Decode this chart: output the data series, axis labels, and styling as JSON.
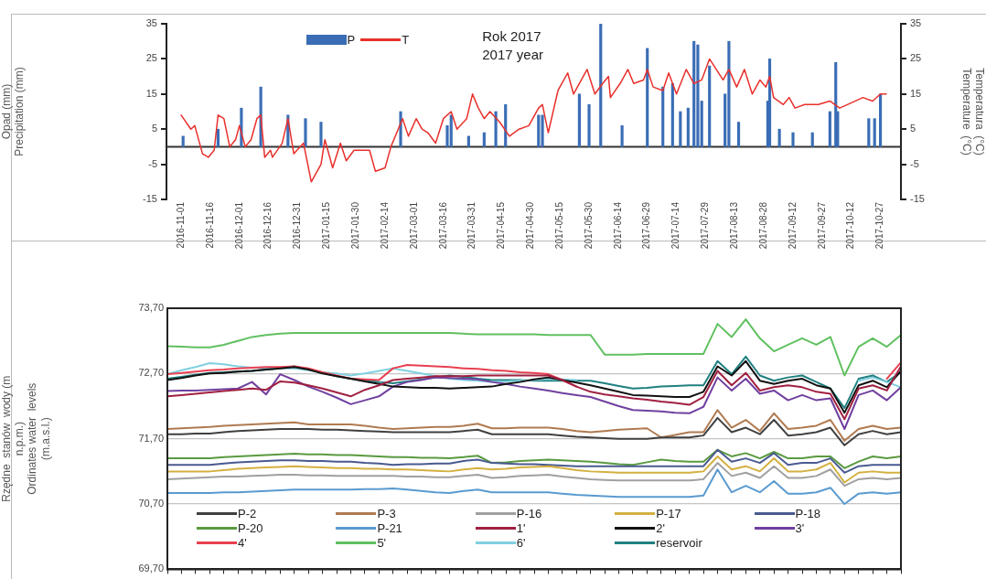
{
  "chart_data": [
    {
      "type": "bar",
      "ylabel": "Opad (mm)\nPrecipitation (mm)",
      "y2label": "Temperatura  (°C)\nTemperature  (°C)",
      "annotations": [
        "Rok 2017",
        "2017 year"
      ],
      "xlim": [
        "2016-11-01",
        "2017-10-30"
      ],
      "xticks": [
        "2016-11-01",
        "2016-11-16",
        "2016-12-01",
        "2016-12-16",
        "2016-12-31",
        "2017-01-15",
        "2017-01-30",
        "2017-02-14",
        "2017-03-01",
        "2017-03-16",
        "2017-03-31",
        "2017-04-15",
        "2017-04-30",
        "2017-05-15",
        "2017-05-30",
        "2017-06-14",
        "2017-06-29",
        "2017-07-14",
        "2017-07-29",
        "2017-08-13",
        "2017-08-28",
        "2017-09-12",
        "2017-09-27",
        "2017-10-12",
        "2017-10-27"
      ],
      "ylim": [
        -15,
        35
      ],
      "yticks": [
        -15,
        -5,
        5,
        15,
        25,
        35
      ],
      "y2lim": [
        -15,
        35
      ],
      "y2ticks": [
        -15,
        -5,
        5,
        15,
        25,
        35
      ],
      "legend": "top",
      "ref_lines": [
        {
          "axis": "y",
          "value": 0,
          "color": "#333333"
        }
      ],
      "series": [
        {
          "name": "P",
          "type": "bar",
          "color": "#3a6db5",
          "x": [
            "2016-11-02",
            "2016-11-20",
            "2016-12-02",
            "2016-12-12",
            "2016-12-26",
            "2017-01-04",
            "2017-01-12",
            "2017-02-22",
            "2017-03-18",
            "2017-03-20",
            "2017-03-29",
            "2017-04-06",
            "2017-04-12",
            "2017-04-17",
            "2017-05-04",
            "2017-05-06",
            "2017-05-25",
            "2017-05-30",
            "2017-06-05",
            "2017-06-16",
            "2017-06-29",
            "2017-07-07",
            "2017-07-12",
            "2017-07-16",
            "2017-07-20",
            "2017-07-23",
            "2017-07-25",
            "2017-07-27",
            "2017-07-31",
            "2017-08-08",
            "2017-08-10",
            "2017-08-15",
            "2017-08-30",
            "2017-08-31",
            "2017-09-05",
            "2017-09-12",
            "2017-09-22",
            "2017-10-01",
            "2017-10-04",
            "2017-10-05",
            "2017-10-21",
            "2017-10-24",
            "2017-10-27"
          ],
          "values": [
            3,
            5,
            11,
            17,
            9,
            8,
            7,
            10,
            6,
            9,
            3,
            4,
            10,
            12,
            9,
            9,
            15,
            12,
            35,
            6,
            28,
            17,
            18,
            10,
            11,
            30,
            29,
            13,
            23,
            15,
            30,
            7,
            13,
            25,
            5,
            4,
            4,
            10,
            24,
            10,
            8,
            8,
            15
          ]
        },
        {
          "name": "T",
          "type": "line",
          "axis": "y2",
          "color": "#e8302c",
          "x": [
            "2016-11-01",
            "2016-11-06",
            "2016-11-08",
            "2016-11-12",
            "2016-11-15",
            "2016-11-18",
            "2016-11-20",
            "2016-11-23",
            "2016-11-26",
            "2016-11-29",
            "2016-12-01",
            "2016-12-04",
            "2016-12-07",
            "2016-12-10",
            "2016-12-12",
            "2016-12-14",
            "2016-12-17",
            "2016-12-18",
            "2016-12-23",
            "2016-12-26",
            "2016-12-29",
            "2017-01-03",
            "2017-01-07",
            "2017-01-12",
            "2017-01-14",
            "2017-01-18",
            "2017-01-22",
            "2017-01-25",
            "2017-01-29",
            "2017-02-01",
            "2017-02-06",
            "2017-02-09",
            "2017-02-14",
            "2017-02-17",
            "2017-02-20",
            "2017-02-23",
            "2017-02-26",
            "2017-03-02",
            "2017-03-05",
            "2017-03-08",
            "2017-03-12",
            "2017-03-16",
            "2017-03-20",
            "2017-03-23",
            "2017-03-28",
            "2017-03-31",
            "2017-04-03",
            "2017-04-06",
            "2017-04-09",
            "2017-04-14",
            "2017-04-19",
            "2017-04-24",
            "2017-04-29",
            "2017-05-04",
            "2017-05-06",
            "2017-05-09",
            "2017-05-14",
            "2017-05-19",
            "2017-05-22",
            "2017-05-29",
            "2017-06-02",
            "2017-06-06",
            "2017-06-09",
            "2017-06-10",
            "2017-06-15",
            "2017-06-19",
            "2017-06-22",
            "2017-06-27",
            "2017-06-29",
            "2017-07-02",
            "2017-07-07",
            "2017-07-10",
            "2017-07-14",
            "2017-07-19",
            "2017-07-23",
            "2017-07-27",
            "2017-07-31",
            "2017-08-07",
            "2017-08-10",
            "2017-08-14",
            "2017-08-18",
            "2017-08-22",
            "2017-08-26",
            "2017-08-29",
            "2017-08-31",
            "2017-09-02",
            "2017-09-07",
            "2017-09-10",
            "2017-09-13",
            "2017-09-18",
            "2017-09-25",
            "2017-10-01",
            "2017-10-06",
            "2017-10-10",
            "2017-10-18",
            "2017-10-23",
            "2017-10-27",
            "2017-10-30"
          ],
          "values": [
            9,
            5,
            6,
            -2,
            -3,
            -1,
            9,
            8,
            0,
            2,
            6,
            0,
            2,
            8,
            9,
            -3,
            -1,
            -3,
            1,
            8,
            -2,
            1,
            -10,
            -5,
            2,
            -6,
            1,
            -4,
            -1,
            -1,
            -1,
            -7,
            -6,
            0,
            4,
            8,
            3,
            8,
            5,
            4,
            1,
            8,
            10,
            5,
            8,
            15,
            11,
            8,
            10,
            7,
            3,
            5,
            6,
            11,
            12,
            4,
            16,
            21,
            15,
            22,
            15,
            18,
            20,
            14,
            18,
            22,
            18,
            19,
            22,
            17,
            16,
            21,
            15,
            22,
            18,
            19,
            25,
            19,
            22,
            17,
            22,
            15,
            19,
            17,
            20,
            14,
            12,
            14,
            11,
            12,
            12,
            13,
            11,
            12,
            14,
            13,
            15,
            15
          ]
        }
      ]
    },
    {
      "type": "line",
      "ylabel": "Rzędne  stanów  wody (m\nn.p.m.)\nOrdinates water  levels\n(m.a.s.l.)",
      "categories": [
        null,
        null,
        null,
        null,
        null,
        null,
        null,
        null,
        null,
        null,
        null,
        null,
        null,
        null,
        null,
        null,
        null,
        null,
        null,
        null,
        null,
        null,
        null,
        null,
        null,
        null,
        null,
        null,
        null,
        null,
        null,
        null,
        null,
        null,
        null,
        null,
        null,
        null,
        null,
        null,
        null,
        null,
        null,
        null,
        null,
        null,
        null,
        null,
        null,
        null,
        null,
        null,
        null
      ],
      "ylim": [
        69.7,
        73.7
      ],
      "yticks": [
        {
          "value": 69.7,
          "label": "69,70"
        },
        {
          "value": 70.7,
          "label": "70,70"
        },
        {
          "value": 71.7,
          "label": "71,70"
        },
        {
          "value": 72.7,
          "label": "72,70"
        },
        {
          "value": 73.7,
          "label": "73,70"
        }
      ],
      "grid": "y",
      "legend": "bottom",
      "tick_labels": "y",
      "series": [
        {
          "name": "P-2",
          "color": "#404040",
          "values": [
            71.77,
            71.77,
            71.78,
            71.78,
            71.8,
            71.82,
            71.83,
            71.84,
            71.85,
            71.85,
            71.85,
            71.84,
            71.84,
            71.83,
            71.82,
            71.81,
            71.8,
            71.8,
            71.8,
            71.8,
            71.8,
            71.82,
            71.84,
            71.77,
            71.77,
            71.77,
            71.77,
            71.77,
            71.75,
            71.73,
            71.72,
            71.71,
            71.7,
            71.7,
            71.7,
            71.72,
            71.72,
            71.72,
            71.75,
            72.02,
            71.8,
            71.87,
            71.77,
            71.99,
            71.75,
            71.77,
            71.8,
            71.87,
            71.6,
            71.77,
            71.82,
            71.77,
            71.8
          ]
        },
        {
          "name": "P-3",
          "color": "#b07a50",
          "values": [
            71.85,
            71.86,
            71.87,
            71.88,
            71.9,
            71.91,
            71.92,
            71.93,
            71.94,
            71.95,
            71.92,
            71.92,
            71.92,
            71.92,
            71.9,
            71.87,
            71.85,
            71.86,
            71.87,
            71.88,
            71.88,
            71.9,
            71.93,
            71.86,
            71.86,
            71.87,
            71.87,
            71.87,
            71.85,
            71.82,
            71.8,
            71.82,
            71.84,
            71.85,
            71.86,
            71.72,
            71.76,
            71.8,
            71.8,
            72.14,
            71.87,
            71.99,
            71.82,
            72.09,
            71.85,
            71.87,
            71.9,
            71.99,
            71.67,
            71.85,
            71.9,
            71.85,
            71.87
          ]
        },
        {
          "name": "P-16",
          "color": "#a0a0a0",
          "values": [
            71.08,
            71.09,
            71.1,
            71.11,
            71.12,
            71.12,
            71.13,
            71.14,
            71.15,
            71.15,
            71.14,
            71.14,
            71.13,
            71.13,
            71.13,
            71.13,
            71.13,
            71.12,
            71.12,
            71.11,
            71.11,
            71.13,
            71.15,
            71.1,
            71.11,
            71.13,
            71.14,
            71.15,
            71.12,
            71.1,
            71.08,
            71.07,
            71.06,
            71.06,
            71.06,
            71.06,
            71.06,
            71.06,
            71.08,
            71.33,
            71.13,
            71.18,
            71.1,
            71.28,
            71.1,
            71.1,
            71.13,
            71.23,
            70.98,
            71.08,
            71.1,
            71.08,
            71.1
          ]
        },
        {
          "name": "P-17",
          "color": "#d4b040",
          "values": [
            71.2,
            71.2,
            71.2,
            71.2,
            71.22,
            71.24,
            71.25,
            71.26,
            71.27,
            71.28,
            71.27,
            71.26,
            71.25,
            71.25,
            71.24,
            71.24,
            71.23,
            71.23,
            71.22,
            71.21,
            71.2,
            71.23,
            71.25,
            71.23,
            71.24,
            71.26,
            71.27,
            71.28,
            71.25,
            71.22,
            71.2,
            71.19,
            71.18,
            71.18,
            71.18,
            71.18,
            71.18,
            71.18,
            71.2,
            71.43,
            71.23,
            71.28,
            71.2,
            71.4,
            71.2,
            71.2,
            71.23,
            71.33,
            71.03,
            71.18,
            71.2,
            71.18,
            71.18
          ]
        },
        {
          "name": "P-18",
          "color": "#4a5a90",
          "values": [
            71.3,
            71.3,
            71.3,
            71.3,
            71.32,
            71.34,
            71.35,
            71.36,
            71.37,
            71.37,
            71.36,
            71.36,
            71.35,
            71.35,
            71.33,
            71.32,
            71.3,
            71.31,
            71.31,
            71.32,
            71.32,
            71.36,
            71.38,
            71.33,
            71.32,
            71.31,
            71.31,
            71.3,
            71.29,
            71.28,
            71.28,
            71.28,
            71.28,
            71.28,
            71.28,
            71.28,
            71.28,
            71.28,
            71.28,
            71.53,
            71.35,
            71.4,
            71.33,
            71.48,
            71.3,
            71.33,
            71.33,
            71.4,
            71.18,
            71.28,
            71.3,
            71.3,
            71.3
          ]
        },
        {
          "name": "P-20",
          "color": "#5a9a40",
          "values": [
            71.4,
            71.4,
            71.4,
            71.4,
            71.42,
            71.43,
            71.44,
            71.45,
            71.46,
            71.47,
            71.46,
            71.46,
            71.45,
            71.45,
            71.44,
            71.43,
            71.42,
            71.42,
            71.41,
            71.41,
            71.4,
            71.42,
            71.44,
            71.33,
            71.34,
            71.36,
            71.37,
            71.38,
            71.37,
            71.36,
            71.35,
            71.33,
            71.31,
            71.3,
            71.34,
            71.38,
            71.36,
            71.35,
            71.35,
            71.53,
            71.43,
            71.48,
            71.4,
            71.5,
            71.4,
            71.4,
            71.43,
            71.43,
            71.25,
            71.35,
            71.43,
            71.4,
            71.43
          ]
        },
        {
          "name": "P-21",
          "color": "#5a9ad0",
          "values": [
            70.87,
            70.87,
            70.87,
            70.87,
            70.88,
            70.88,
            70.89,
            70.9,
            70.91,
            70.92,
            70.92,
            70.92,
            70.92,
            70.92,
            70.93,
            70.93,
            70.94,
            70.92,
            70.9,
            70.88,
            70.87,
            70.9,
            70.92,
            70.88,
            70.88,
            70.88,
            70.88,
            70.88,
            70.86,
            70.84,
            70.83,
            70.82,
            70.81,
            70.81,
            70.81,
            70.81,
            70.81,
            70.81,
            70.83,
            71.23,
            70.88,
            70.98,
            70.88,
            71.05,
            70.86,
            70.86,
            70.88,
            70.95,
            70.7,
            70.86,
            70.88,
            70.86,
            70.88
          ]
        },
        {
          "name": "1'",
          "color": "#a02040",
          "values": [
            72.35,
            72.37,
            72.39,
            72.41,
            72.43,
            72.45,
            72.47,
            72.45,
            72.58,
            72.56,
            72.52,
            72.47,
            72.41,
            72.35,
            72.45,
            72.52,
            72.6,
            72.62,
            72.64,
            72.66,
            72.66,
            72.66,
            72.67,
            72.67,
            72.67,
            72.67,
            72.67,
            72.67,
            72.6,
            72.5,
            72.42,
            72.38,
            72.35,
            72.32,
            72.3,
            72.27,
            72.25,
            72.22,
            72.34,
            72.74,
            72.52,
            72.71,
            72.44,
            72.49,
            72.52,
            72.49,
            72.42,
            72.39,
            72.0,
            72.47,
            72.52,
            72.44,
            72.81
          ]
        },
        {
          "name": "2'",
          "color": "#111111",
          "values": [
            72.6,
            72.63,
            72.67,
            72.7,
            72.71,
            72.73,
            72.74,
            72.76,
            72.78,
            72.8,
            72.76,
            72.7,
            72.66,
            72.62,
            72.58,
            72.54,
            72.5,
            72.49,
            72.48,
            72.48,
            72.47,
            72.48,
            72.49,
            72.5,
            72.54,
            72.57,
            72.61,
            72.64,
            72.6,
            72.56,
            72.52,
            72.47,
            72.42,
            72.37,
            72.36,
            72.35,
            72.34,
            72.34,
            72.42,
            72.81,
            72.67,
            72.89,
            72.59,
            72.54,
            72.59,
            72.62,
            72.52,
            72.47,
            72.1,
            72.52,
            72.59,
            72.49,
            72.74
          ]
        },
        {
          "name": "3'",
          "color": "#7040a0",
          "values": [
            72.43,
            72.44,
            72.44,
            72.45,
            72.46,
            72.47,
            72.57,
            72.38,
            72.69,
            72.6,
            72.5,
            72.42,
            72.33,
            72.23,
            72.29,
            72.35,
            72.5,
            72.57,
            72.6,
            72.64,
            72.63,
            72.62,
            72.61,
            72.57,
            72.54,
            72.5,
            72.47,
            72.44,
            72.4,
            72.37,
            72.34,
            72.27,
            72.2,
            72.14,
            72.13,
            72.12,
            72.1,
            72.09,
            72.19,
            72.64,
            72.44,
            72.62,
            72.39,
            72.44,
            72.29,
            72.37,
            72.29,
            72.32,
            71.85,
            72.37,
            72.44,
            72.29,
            72.49
          ]
        },
        {
          "name": "4'",
          "color": "#e84050",
          "values": [
            72.69,
            72.71,
            72.73,
            72.75,
            72.76,
            72.78,
            72.79,
            72.8,
            72.8,
            72.81,
            72.78,
            72.72,
            72.67,
            72.62,
            72.61,
            72.6,
            72.78,
            72.83,
            72.82,
            72.81,
            72.8,
            72.78,
            72.77,
            72.75,
            72.74,
            72.72,
            72.71,
            72.69,
            72.6,
            72.5,
            null,
            null,
            null,
            null,
            null,
            null,
            null,
            null,
            null,
            null,
            null,
            null,
            null,
            null,
            null,
            null,
            null,
            null,
            null,
            null,
            null,
            72.62,
            72.87
          ]
        },
        {
          "name": "5'",
          "color": "#60c060",
          "values": [
            73.12,
            73.11,
            73.1,
            73.1,
            73.14,
            73.2,
            73.26,
            73.29,
            73.31,
            73.32,
            73.32,
            73.32,
            73.32,
            73.32,
            73.32,
            73.32,
            73.32,
            73.32,
            73.32,
            73.32,
            73.32,
            73.31,
            73.3,
            73.3,
            73.3,
            73.3,
            73.3,
            73.29,
            73.29,
            73.29,
            73.29,
            72.99,
            72.99,
            72.99,
            73.0,
            73.0,
            73.0,
            73.0,
            73.0,
            73.46,
            73.26,
            73.53,
            73.24,
            73.04,
            73.14,
            73.24,
            73.14,
            73.26,
            72.67,
            73.11,
            73.24,
            73.11,
            73.29
          ]
        },
        {
          "name": "6'",
          "color": "#80d0e0",
          "values": [
            72.69,
            72.75,
            72.8,
            72.86,
            72.84,
            72.81,
            72.79,
            72.79,
            72.78,
            72.78,
            72.75,
            72.72,
            72.7,
            72.67,
            72.7,
            72.74,
            72.78,
            72.74,
            72.7,
            72.66,
            72.62,
            72.6,
            72.59,
            72.57,
            72.58,
            72.59,
            72.6,
            72.62,
            72.61,
            72.6,
            null,
            null,
            null,
            null,
            null,
            null,
            null,
            null,
            null,
            null,
            null,
            null,
            null,
            null,
            null,
            null,
            null,
            null,
            null,
            72.59,
            72.64,
            72.57,
            72.49
          ]
        },
        {
          "name": "reservoir",
          "color": "#208080",
          "values": [
            72.62,
            72.65,
            72.68,
            72.71,
            72.72,
            72.73,
            72.74,
            72.76,
            72.78,
            72.81,
            72.76,
            72.71,
            72.66,
            72.62,
            72.6,
            72.57,
            72.55,
            72.58,
            72.61,
            72.64,
            72.67,
            72.65,
            72.62,
            72.6,
            72.6,
            72.6,
            72.59,
            72.59,
            72.59,
            72.59,
            72.59,
            72.55,
            72.51,
            72.47,
            72.48,
            72.5,
            72.51,
            72.52,
            72.52,
            72.89,
            72.69,
            72.96,
            72.67,
            72.59,
            72.64,
            72.67,
            72.57,
            72.47,
            72.17,
            72.62,
            72.67,
            72.57,
            72.72
          ]
        }
      ]
    }
  ]
}
